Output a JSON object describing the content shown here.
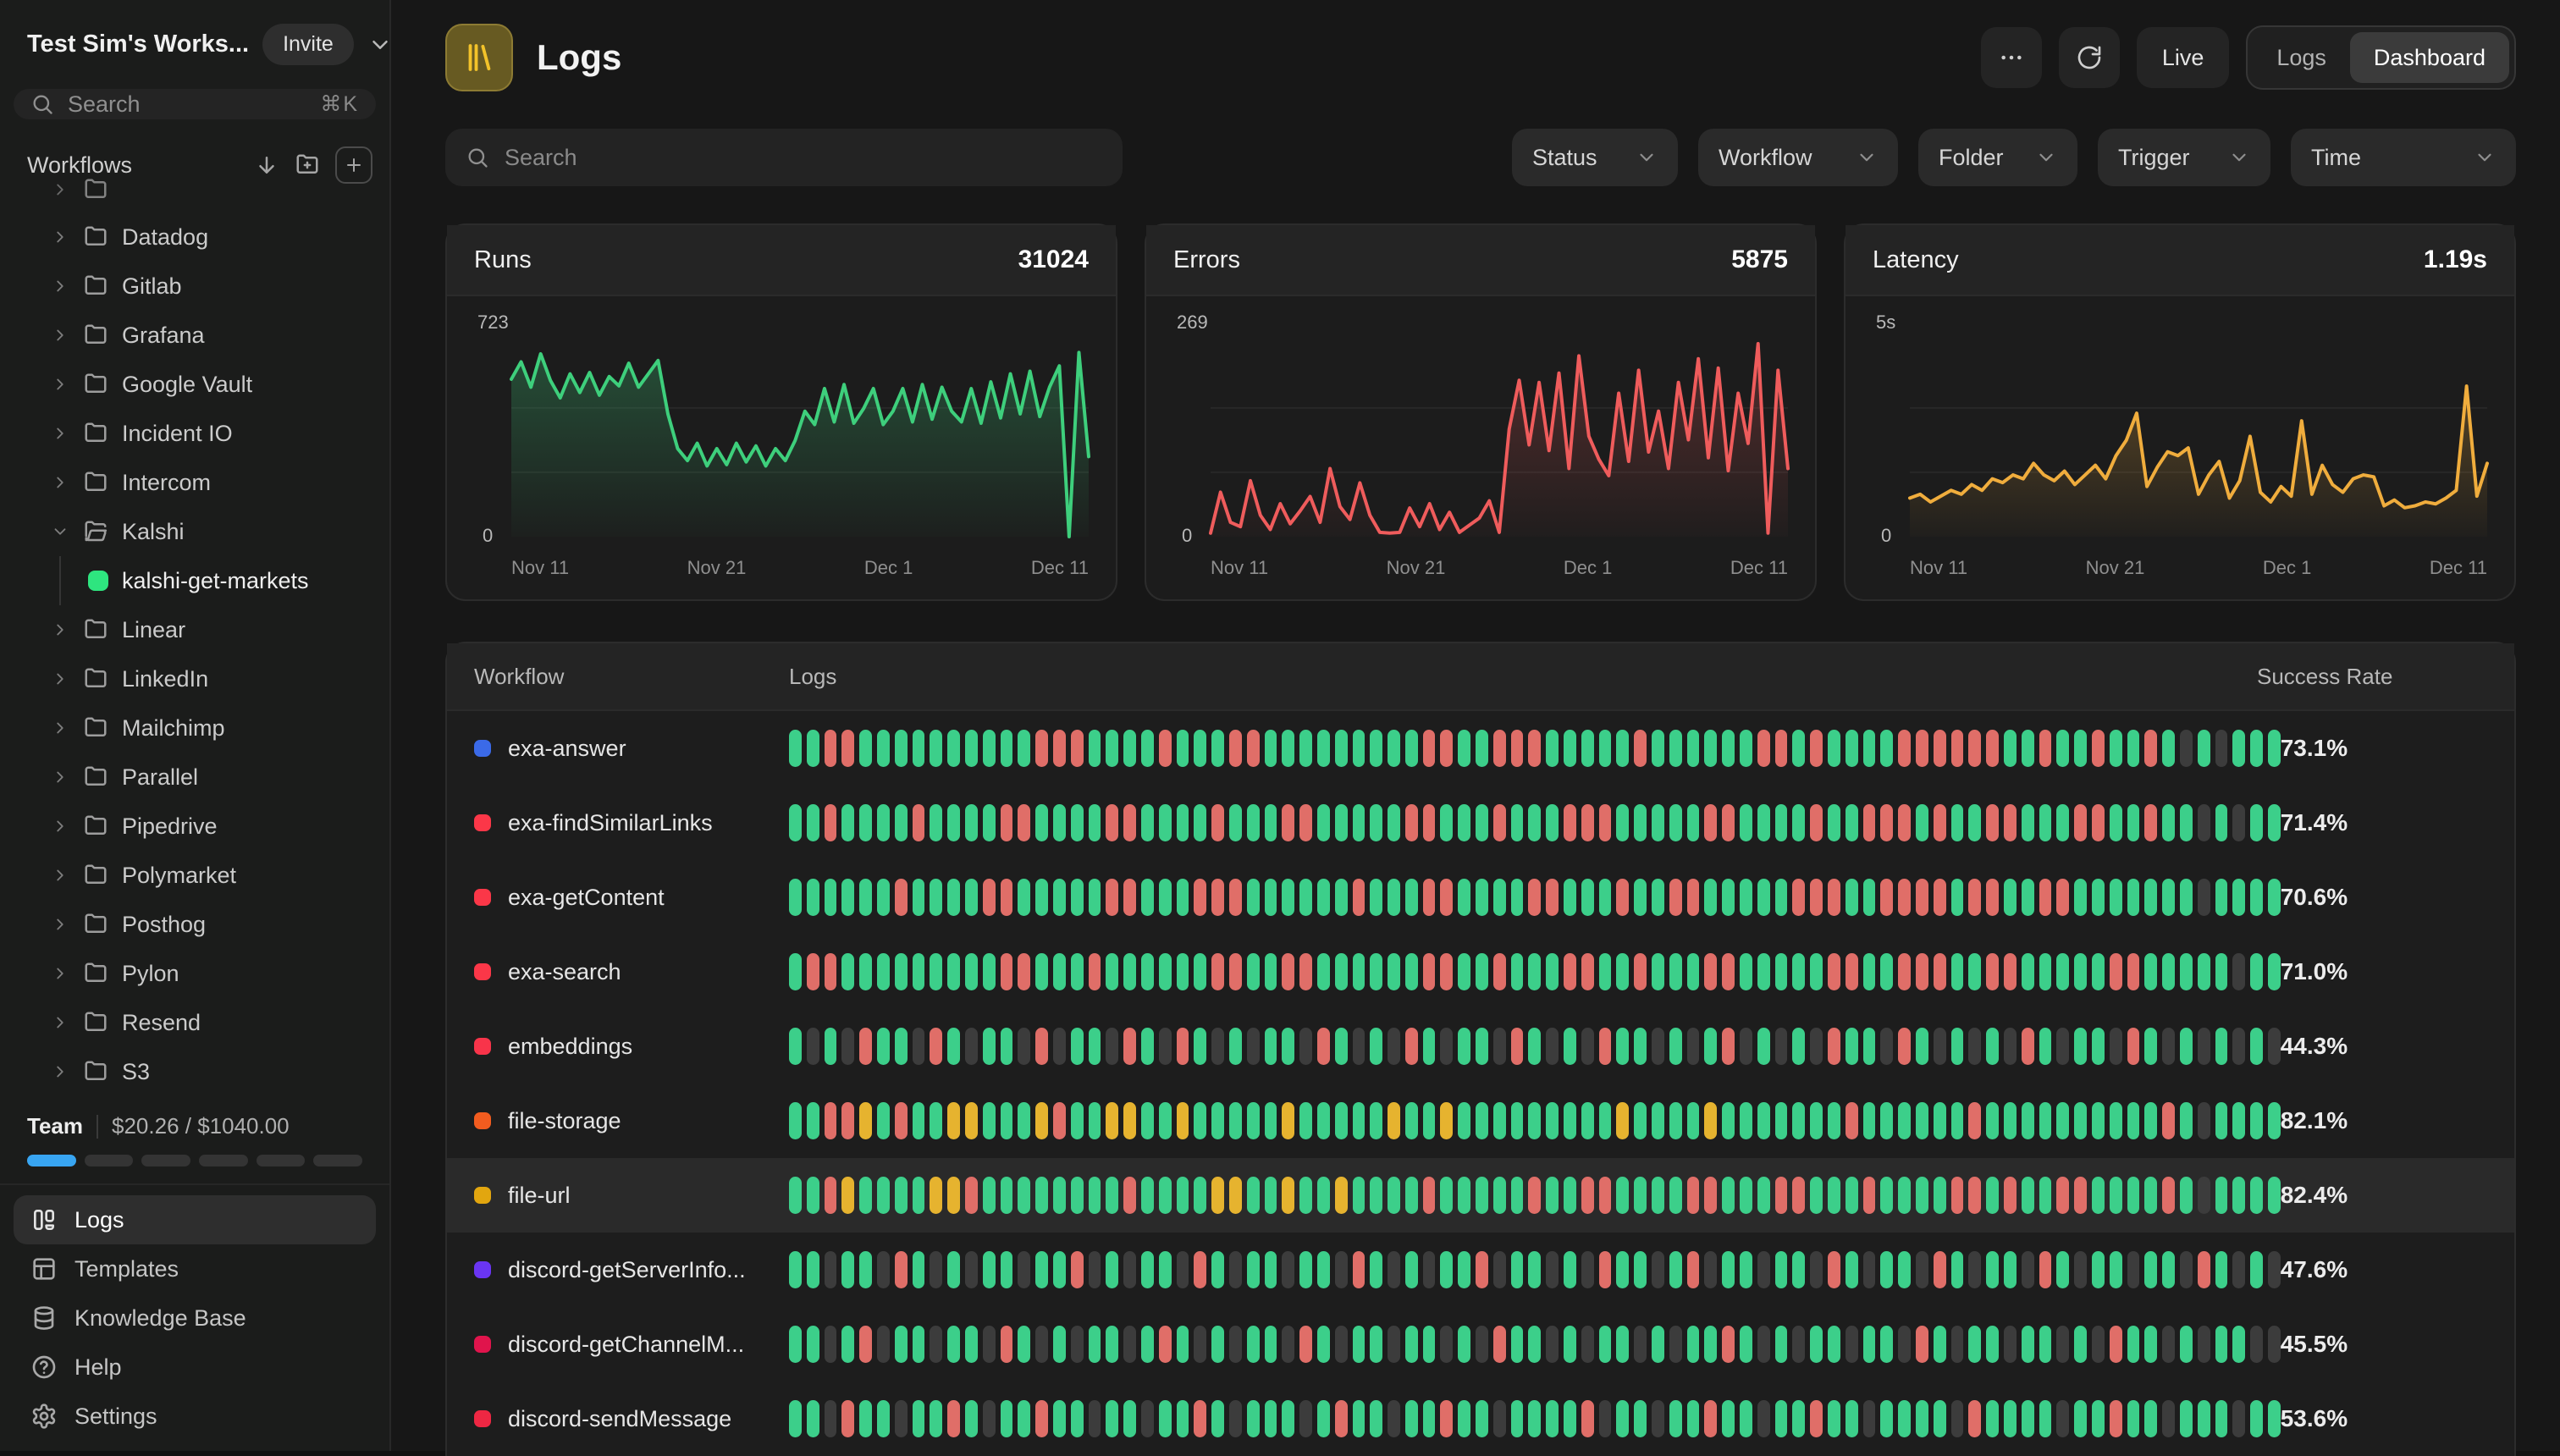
{
  "sidebar": {
    "workspace": {
      "name": "Test Sim's Works...",
      "invite_label": "Invite"
    },
    "search": {
      "placeholder": "Search",
      "shortcut": "⌘K"
    },
    "workflows": {
      "label": "Workflows"
    },
    "tree": [
      {
        "label": "",
        "kind": "folder",
        "partial": true
      },
      {
        "label": "Datadog",
        "kind": "folder"
      },
      {
        "label": "Gitlab",
        "kind": "folder"
      },
      {
        "label": "Grafana",
        "kind": "folder"
      },
      {
        "label": "Google Vault",
        "kind": "folder"
      },
      {
        "label": "Incident IO",
        "kind": "folder"
      },
      {
        "label": "Intercom",
        "kind": "folder"
      },
      {
        "label": "Kalshi",
        "kind": "folder",
        "expanded": true
      },
      {
        "label": "kalshi-get-markets",
        "kind": "workflow",
        "color": "#2ee57f"
      },
      {
        "label": "Linear",
        "kind": "folder"
      },
      {
        "label": "LinkedIn",
        "kind": "folder"
      },
      {
        "label": "Mailchimp",
        "kind": "folder"
      },
      {
        "label": "Parallel",
        "kind": "folder"
      },
      {
        "label": "Pipedrive",
        "kind": "folder"
      },
      {
        "label": "Polymarket",
        "kind": "folder"
      },
      {
        "label": "Posthog",
        "kind": "folder"
      },
      {
        "label": "Pylon",
        "kind": "folder"
      },
      {
        "label": "Resend",
        "kind": "folder"
      },
      {
        "label": "S3",
        "kind": "folder"
      }
    ],
    "team": {
      "label": "Team",
      "usage": "$20.26 / $1040.00",
      "segments": 6,
      "filled": 1,
      "fill_color": "#38a5f2",
      "empty_color": "#343434"
    },
    "nav": [
      {
        "label": "Logs",
        "icon": "logs",
        "active": true
      },
      {
        "label": "Templates",
        "icon": "templates",
        "active": false
      },
      {
        "label": "Knowledge Base",
        "icon": "database",
        "active": false
      },
      {
        "label": "Help",
        "icon": "help",
        "active": false
      },
      {
        "label": "Settings",
        "icon": "settings",
        "active": false
      }
    ]
  },
  "header": {
    "title": "Logs",
    "live_label": "Live",
    "view_toggle": {
      "options": [
        "Logs",
        "Dashboard"
      ],
      "selected": "Dashboard"
    }
  },
  "toolbar": {
    "search_placeholder": "Search",
    "filters": [
      "Status",
      "Workflow",
      "Folder",
      "Trigger",
      "Time"
    ]
  },
  "chart_data": [
    {
      "type": "area",
      "title": "Runs",
      "value": "31024",
      "color": "#3ecf7c",
      "ylim": [
        0,
        723
      ],
      "ymax_label": "723",
      "y0_label": "0",
      "x_ticks": [
        "Nov 11",
        "Nov 21",
        "Dec 1",
        "Dec 11"
      ],
      "values": [
        590,
        655,
        560,
        685,
        585,
        520,
        610,
        540,
        615,
        530,
        600,
        565,
        650,
        560,
        610,
        660,
        460,
        330,
        285,
        350,
        265,
        330,
        270,
        350,
        280,
        340,
        265,
        330,
        285,
        360,
        470,
        420,
        555,
        430,
        570,
        425,
        480,
        555,
        420,
        470,
        555,
        430,
        570,
        440,
        560,
        470,
        430,
        555,
        425,
        580,
        445,
        610,
        460,
        620,
        450,
        560,
        640,
        0,
        690,
        300
      ]
    },
    {
      "type": "area",
      "title": "Errors",
      "value": "5875",
      "color": "#ef5c5c",
      "ylim": [
        0,
        269
      ],
      "ymax_label": "269",
      "y0_label": "0",
      "x_ticks": [
        "Nov 11",
        "Nov 21",
        "Dec 1",
        "Dec 11"
      ],
      "values": [
        5,
        62,
        20,
        14,
        78,
        30,
        10,
        46,
        18,
        36,
        56,
        20,
        95,
        42,
        24,
        75,
        30,
        6,
        5,
        6,
        40,
        14,
        46,
        10,
        34,
        6,
        16,
        26,
        50,
        6,
        150,
        218,
        128,
        215,
        120,
        228,
        95,
        252,
        140,
        108,
        85,
        200,
        105,
        232,
        118,
        175,
        95,
        215,
        135,
        248,
        110,
        235,
        92,
        200,
        130,
        269,
        5,
        232,
        95
      ]
    },
    {
      "type": "area",
      "title": "Latency",
      "value": "1.19s",
      "color": "#f0ad3d",
      "ylim": [
        0,
        5
      ],
      "ymax_label": "5s",
      "y0_label": "0",
      "x_ticks": [
        "Nov 11",
        "Nov 21",
        "Dec 1",
        "Dec 11"
      ],
      "values": [
        1.0,
        1.1,
        0.9,
        1.05,
        1.2,
        1.1,
        1.35,
        1.2,
        1.5,
        1.4,
        1.6,
        1.5,
        1.9,
        1.6,
        1.45,
        1.7,
        1.35,
        1.6,
        1.85,
        1.5,
        2.1,
        2.5,
        3.2,
        1.3,
        1.8,
        2.2,
        2.1,
        2.3,
        1.1,
        1.6,
        1.95,
        1.0,
        1.45,
        2.6,
        1.15,
        0.9,
        1.3,
        1.05,
        3.0,
        1.1,
        1.85,
        1.35,
        1.15,
        1.5,
        1.6,
        1.55,
        0.8,
        0.95,
        0.75,
        0.8,
        0.9,
        0.85,
        1.0,
        1.2,
        3.9,
        1.05,
        1.9
      ]
    }
  ],
  "table": {
    "columns": [
      "Workflow",
      "Logs",
      "Success Rate"
    ],
    "bar_colors": {
      "g": "#3ccf8a",
      "r": "#e06e68",
      "y": "#e6b32f",
      "x": "#3c3c3c"
    },
    "rows": [
      {
        "name": "exa-answer",
        "dot": "#3b6ae8",
        "success": "73.1%",
        "highlighted": false,
        "pattern": [
          "ggrrgggggg",
          "ggggrrrggg",
          "grgggrrggg",
          "ggggggrrgg",
          "rrrgggggrg",
          "gggggrrgrg",
          "gggrrrrrrg",
          "grggrggrgx",
          "gxggg"
        ]
      },
      {
        "name": "exa-findSimilarLinks",
        "dot": "#fb3748",
        "success": "71.4%",
        "highlighted": false,
        "pattern": [
          "ggrggggrgg",
          "ggrrggggrr",
          "ggggrgggrr",
          "gggggrrggg",
          "rgggrrrggg",
          "ggrrggggrg",
          "grrrgrggrr",
          "gggrrggrgg",
          "xgxgg"
        ]
      },
      {
        "name": "exa-getContent",
        "dot": "#fb3748",
        "success": "70.6%",
        "highlighted": false,
        "pattern": [
          "ggggggrggg",
          "grrgggggrr",
          "gggrrrgggg",
          "ggrgggrrgg",
          "ggrrgggrgg",
          "rrgggggrrr",
          "ggrrrrgrrg",
          "grrggggggg",
          "xgggg"
        ]
      },
      {
        "name": "exa-search",
        "dot": "#fb3748",
        "success": "71.0%",
        "highlighted": false,
        "pattern": [
          "grrggggggg",
          "ggrrgggrgg",
          "ggggrrggrr",
          "ggggggrrgg",
          "rgggrrggrg",
          "ggrrgggggr",
          "rggrrrggrr",
          "gggggrrggg",
          "ggxgg"
        ]
      },
      {
        "name": "embeddings",
        "dot": "#f8344a",
        "success": "44.3%",
        "highlighted": false,
        "pattern": [
          "gxgxrggxrg",
          "xggxrxggxr",
          "gxrgxgxggx",
          "rgxgxrgxgg",
          "xrgxgxrggx",
          "gxgrxgxgxr",
          "ggxrgxgxgx",
          "rgxggxrgxg",
          "xgxgx"
        ]
      },
      {
        "name": "file-storage",
        "dot": "#f25c1f",
        "success": "82.1%",
        "highlighted": false,
        "pattern": [
          "ggrrygrggy",
          "ygggyrggyy",
          "ggygggggyg",
          "ggggyggygg",
          "gggggggygg",
          "ggyggggggg",
          "rggggggrgg",
          "ggggggggrg",
          "xgggg"
        ]
      },
      {
        "name": "file-url",
        "dot": "#e2a60f",
        "success": "82.4%",
        "highlighted": true,
        "pattern": [
          "ggryggggyy",
          "rggggggggr",
          "ggggyyggyg",
          "gyggggrggg",
          "ggrggrrggg",
          "grrgggrrgg",
          "grggggrrgr",
          "ggrrggggrg",
          "xgggg"
        ]
      },
      {
        "name": "discord-getServerInfo...",
        "dot": "#6a35f2",
        "success": "47.6%",
        "highlighted": false,
        "pattern": [
          "ggxggxrgxg",
          "xggxggrxgx",
          "ggxrgxggxg",
          "gxrgxgxggr",
          "xggxgxrggx",
          "grxggxggxr",
          "gxggxrgxgg",
          "xrgxggxggx",
          "rgxgx"
        ]
      },
      {
        "name": "discord-getChannelM...",
        "dot": "#e0144c",
        "success": "45.5%",
        "highlighted": false,
        "pattern": [
          "ggxgrxggxg",
          "gxrgxgxggx",
          "grgxgxggxr",
          "gxggxggxgx",
          "rggxgxggxg",
          "xggrgxgxgg",
          "xggxrgxggx",
          "ggxgxrggxg",
          "xggxx"
        ]
      },
      {
        "name": "discord-sendMessage",
        "dot": "#ee2743",
        "success": "53.6%",
        "highlighted": false,
        "pattern": [
          "ggxrggxggr",
          "gxggrggxgg",
          "xggrgxgggx",
          "grggxggrgg",
          "xggggrxggx",
          "ggrggxggrg",
          "gxggggxrgg",
          "ggxggrggxg",
          "ggxgg"
        ]
      }
    ]
  }
}
